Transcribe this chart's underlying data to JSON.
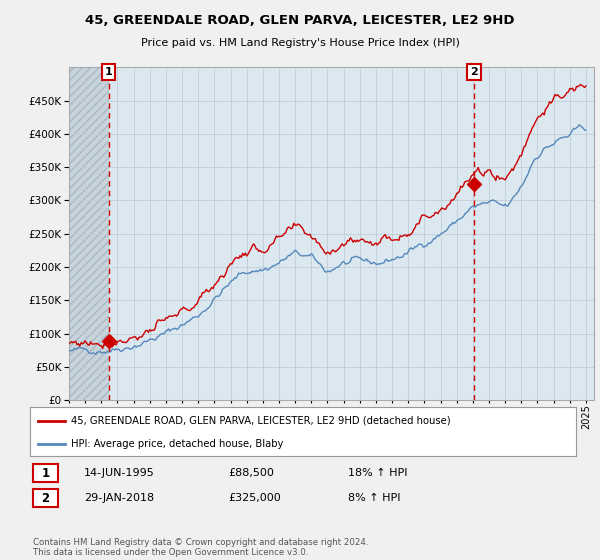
{
  "title": "45, GREENDALE ROAD, GLEN PARVA, LEICESTER, LE2 9HD",
  "subtitle": "Price paid vs. HM Land Registry's House Price Index (HPI)",
  "legend_line1": "45, GREENDALE ROAD, GLEN PARVA, LEICESTER, LE2 9HD (detached house)",
  "legend_line2": "HPI: Average price, detached house, Blaby",
  "annotation1_label": "1",
  "annotation1_date": "14-JUN-1995",
  "annotation1_price": "£88,500",
  "annotation1_hpi": "18% ↑ HPI",
  "annotation2_label": "2",
  "annotation2_date": "29-JAN-2018",
  "annotation2_price": "£325,000",
  "annotation2_hpi": "8% ↑ HPI",
  "footnote": "Contains HM Land Registry data © Crown copyright and database right 2024.\nThis data is licensed under the Open Government Licence v3.0.",
  "red_color": "#cc0000",
  "blue_color": "#5588bb",
  "background_color": "#f0f0f0",
  "plot_bg_color": "#dce8f0",
  "hatch_color": "#c0c8d0",
  "grid_color": "#b8c8d8",
  "ylim": [
    0,
    500000
  ],
  "yticks": [
    0,
    50000,
    100000,
    150000,
    200000,
    250000,
    300000,
    350000,
    400000,
    450000
  ],
  "sale1_year": 1995.45,
  "sale1_value": 88500,
  "sale2_year": 2018.08,
  "sale2_value": 325000,
  "xmin": 1993,
  "xmax": 2025.5
}
